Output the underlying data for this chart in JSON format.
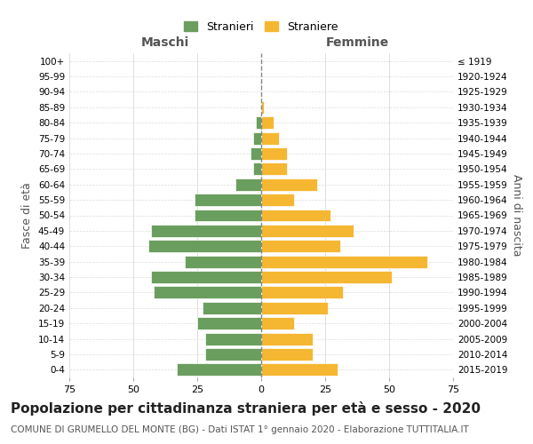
{
  "age_groups": [
    "0-4",
    "5-9",
    "10-14",
    "15-19",
    "20-24",
    "25-29",
    "30-34",
    "35-39",
    "40-44",
    "45-49",
    "50-54",
    "55-59",
    "60-64",
    "65-69",
    "70-74",
    "75-79",
    "80-84",
    "85-89",
    "90-94",
    "95-99",
    "100+"
  ],
  "birth_years": [
    "2015-2019",
    "2010-2014",
    "2005-2009",
    "2000-2004",
    "1995-1999",
    "1990-1994",
    "1985-1989",
    "1980-1984",
    "1975-1979",
    "1970-1974",
    "1965-1969",
    "1960-1964",
    "1955-1959",
    "1950-1954",
    "1945-1949",
    "1940-1944",
    "1935-1939",
    "1930-1934",
    "1925-1929",
    "1920-1924",
    "≤ 1919"
  ],
  "males": [
    33,
    22,
    22,
    25,
    23,
    42,
    43,
    30,
    44,
    43,
    26,
    26,
    10,
    3,
    4,
    3,
    2,
    0,
    0,
    0,
    0
  ],
  "females": [
    30,
    20,
    20,
    13,
    26,
    32,
    51,
    65,
    31,
    36,
    27,
    13,
    22,
    10,
    10,
    7,
    5,
    1,
    0,
    0,
    0
  ],
  "male_color": "#6a9e5e",
  "female_color": "#f5b731",
  "background_color": "#ffffff",
  "grid_color": "#dddddd",
  "xlim": 75,
  "title": "Popolazione per cittadinanza straniera per età e sesso - 2020",
  "subtitle": "COMUNE DI GRUMELLO DEL MONTE (BG) - Dati ISTAT 1° gennaio 2020 - Elaborazione TUTTITALIA.IT",
  "left_label": "Maschi",
  "right_label": "Femmine",
  "y_left_label": "Fasce di età",
  "y_right_label": "Anni di nascita",
  "legend_males": "Stranieri",
  "legend_females": "Straniere",
  "title_fontsize": 11,
  "subtitle_fontsize": 7.5,
  "bar_height": 0.8
}
